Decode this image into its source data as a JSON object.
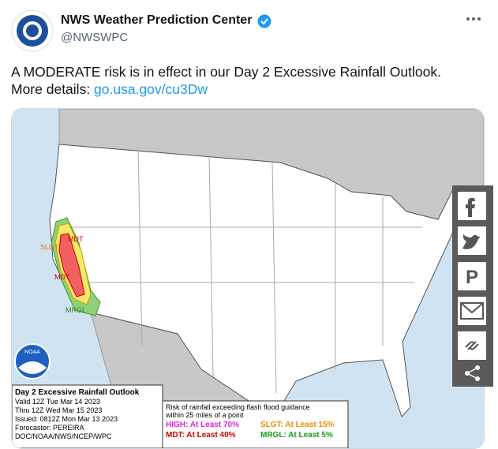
{
  "tweet": {
    "author": "NWS Weather Prediction Center",
    "handle": "@NWSWPC",
    "text_line1": "A MODERATE risk is in effect in our Day 2 Excessive Rainfall Outlook.",
    "text_prefix": "More details: ",
    "link": "go.usa.gov/cu3Dw"
  },
  "map": {
    "labels": [
      "MDT",
      "SLGT",
      "MDT",
      "MRGL"
    ],
    "logo": "NOAA",
    "info": {
      "title": "Day 2 Excessive Rainfall Outlook",
      "valid": "Valid 12Z Tue Mar 14 2023",
      "thru": "Thru 12Z Wed Mar 15 2023",
      "issued": "Issued: 0812Z Mon Mar 13 2023",
      "forecaster": "Forecaster: PEREIRA",
      "agency": "DOC/NOAA/NWS/NCEP/WPC"
    },
    "legend": {
      "caption1": "Risk of rainfall exceeding flash flood guidance",
      "caption2": "within 25 miles of a point",
      "high": "HIGH: At Least 70%",
      "slgt": "SLGT: At Least 15%",
      "mdt": "MDT: At Least 40%",
      "mrgl": "MRGL: At Least 5%"
    }
  }
}
